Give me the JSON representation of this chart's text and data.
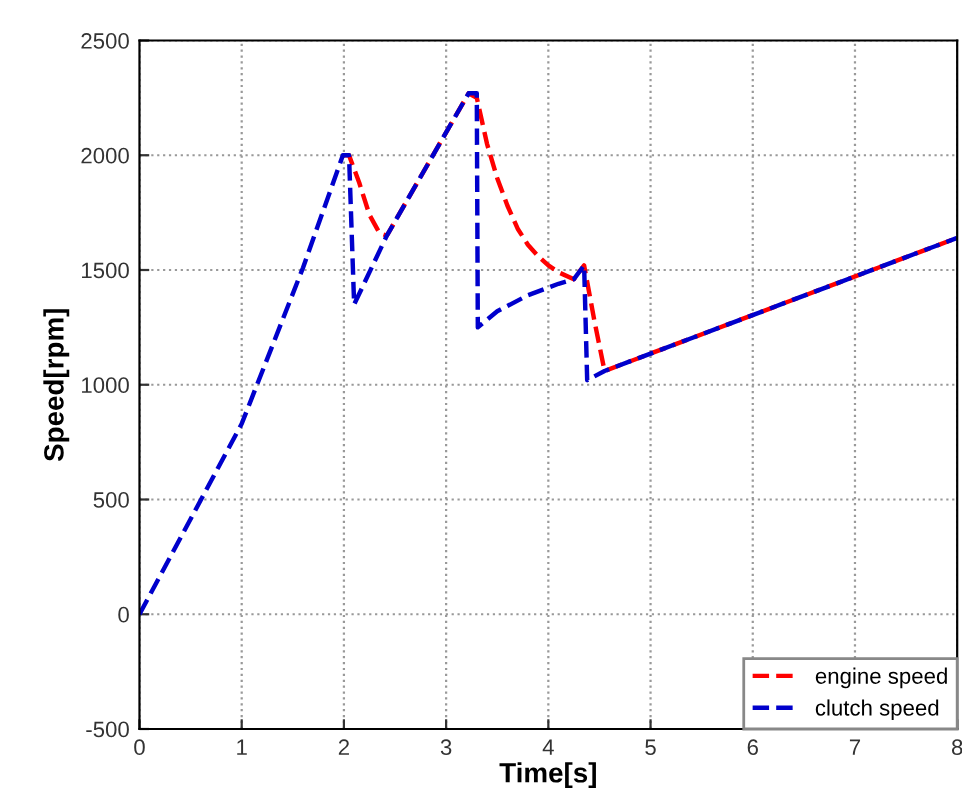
{
  "chart_data": {
    "type": "line",
    "xlabel": "Time[s]",
    "ylabel": "Speed[rpm]",
    "xlim": [
      0,
      8
    ],
    "ylim": [
      -500,
      2500
    ],
    "xticks": [
      0,
      1,
      2,
      3,
      4,
      5,
      6,
      7,
      8
    ],
    "yticks": [
      -500,
      0,
      500,
      1000,
      1500,
      2000,
      2500
    ],
    "grid": true,
    "legend": "bottom right",
    "line_style": "dashed",
    "marker": "none",
    "series": [
      {
        "name": "engine speed",
        "color": "#ff0000",
        "x": [
          1.99,
          2.05,
          2.15,
          2.25,
          2.35,
          2.42,
          3.22,
          3.3,
          3.4,
          3.5,
          3.6,
          3.7,
          3.8,
          3.9,
          4.0,
          4.1,
          4.25,
          4.35,
          4.45,
          4.55,
          8
        ],
        "values": [
          2000,
          2000,
          1880,
          1740,
          1660,
          1650,
          2270,
          2250,
          2050,
          1900,
          1780,
          1680,
          1610,
          1560,
          1520,
          1490,
          1460,
          1520,
          1280,
          1060,
          1640
        ]
      },
      {
        "name": "clutch speed",
        "color": "#0000cc",
        "x": [
          0,
          1,
          1.6,
          1.99,
          2.05,
          2.1,
          2.42,
          3.22,
          3.3,
          3.31,
          3.5,
          3.8,
          4.1,
          4.25,
          4.35,
          4.38,
          4.55,
          8
        ],
        "values": [
          0,
          830,
          1510,
          2000,
          2000,
          1350,
          1650,
          2270,
          2270,
          1250,
          1320,
          1390,
          1440,
          1460,
          1520,
          1020,
          1060,
          1640
        ]
      }
    ]
  }
}
